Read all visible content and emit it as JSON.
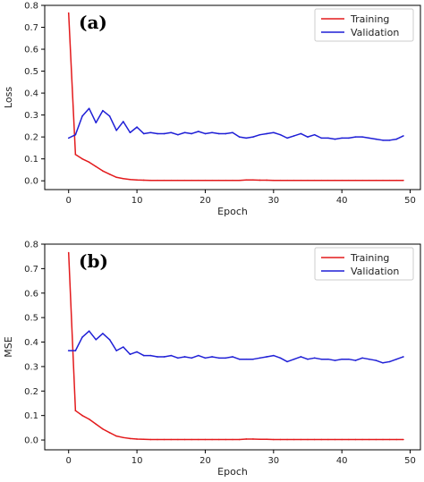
{
  "chart_data": [
    {
      "type": "line",
      "panel_label": "(a)",
      "xlabel": "Epoch",
      "ylabel": "Loss",
      "xlim": [
        -3.5,
        51.5
      ],
      "ylim": [
        -0.04,
        0.8
      ],
      "x_ticks": [
        0,
        10,
        20,
        30,
        40,
        50
      ],
      "y_ticks": [
        0.0,
        0.1,
        0.2,
        0.3,
        0.4,
        0.5,
        0.6,
        0.7,
        0.8
      ],
      "legend_position": "top-right",
      "grid": false,
      "x": [
        0,
        1,
        2,
        3,
        4,
        5,
        6,
        7,
        8,
        9,
        10,
        11,
        12,
        13,
        14,
        15,
        16,
        17,
        18,
        19,
        20,
        21,
        22,
        23,
        24,
        25,
        26,
        27,
        28,
        29,
        30,
        31,
        32,
        33,
        34,
        35,
        36,
        37,
        38,
        39,
        40,
        41,
        42,
        43,
        44,
        45,
        46,
        47,
        48,
        49
      ],
      "series": [
        {
          "name": "Training",
          "color": "#e31a1c",
          "values": [
            0.765,
            0.12,
            0.1,
            0.085,
            0.065,
            0.045,
            0.03,
            0.016,
            0.01,
            0.006,
            0.004,
            0.003,
            0.002,
            0.002,
            0.002,
            0.002,
            0.002,
            0.002,
            0.002,
            0.002,
            0.002,
            0.002,
            0.002,
            0.002,
            0.002,
            0.002,
            0.004,
            0.004,
            0.003,
            0.003,
            0.002,
            0.002,
            0.002,
            0.002,
            0.002,
            0.002,
            0.002,
            0.002,
            0.002,
            0.002,
            0.002,
            0.002,
            0.002,
            0.002,
            0.002,
            0.002,
            0.002,
            0.002,
            0.002,
            0.002
          ]
        },
        {
          "name": "Validation",
          "color": "#1f1fd6",
          "values": [
            0.195,
            0.21,
            0.295,
            0.33,
            0.265,
            0.32,
            0.295,
            0.23,
            0.27,
            0.22,
            0.245,
            0.215,
            0.22,
            0.215,
            0.215,
            0.22,
            0.21,
            0.22,
            0.215,
            0.225,
            0.215,
            0.22,
            0.215,
            0.215,
            0.22,
            0.2,
            0.195,
            0.2,
            0.21,
            0.215,
            0.22,
            0.21,
            0.195,
            0.205,
            0.215,
            0.2,
            0.21,
            0.195,
            0.195,
            0.19,
            0.195,
            0.195,
            0.2,
            0.2,
            0.195,
            0.19,
            0.185,
            0.185,
            0.19,
            0.205
          ]
        }
      ]
    },
    {
      "type": "line",
      "panel_label": "(b)",
      "xlabel": "Epoch",
      "ylabel": "MSE",
      "xlim": [
        -3.5,
        51.5
      ],
      "ylim": [
        -0.04,
        0.8
      ],
      "x_ticks": [
        0,
        10,
        20,
        30,
        40,
        50
      ],
      "y_ticks": [
        0.0,
        0.1,
        0.2,
        0.3,
        0.4,
        0.5,
        0.6,
        0.7,
        0.8
      ],
      "legend_position": "top-right",
      "grid": false,
      "x": [
        0,
        1,
        2,
        3,
        4,
        5,
        6,
        7,
        8,
        9,
        10,
        11,
        12,
        13,
        14,
        15,
        16,
        17,
        18,
        19,
        20,
        21,
        22,
        23,
        24,
        25,
        26,
        27,
        28,
        29,
        30,
        31,
        32,
        33,
        34,
        35,
        36,
        37,
        38,
        39,
        40,
        41,
        42,
        43,
        44,
        45,
        46,
        47,
        48,
        49
      ],
      "series": [
        {
          "name": "Training",
          "color": "#e31a1c",
          "values": [
            0.765,
            0.12,
            0.1,
            0.085,
            0.065,
            0.045,
            0.03,
            0.016,
            0.01,
            0.006,
            0.004,
            0.003,
            0.002,
            0.002,
            0.002,
            0.002,
            0.002,
            0.002,
            0.002,
            0.002,
            0.002,
            0.002,
            0.002,
            0.002,
            0.002,
            0.002,
            0.004,
            0.004,
            0.003,
            0.003,
            0.002,
            0.002,
            0.002,
            0.002,
            0.002,
            0.002,
            0.002,
            0.002,
            0.002,
            0.002,
            0.002,
            0.002,
            0.002,
            0.002,
            0.002,
            0.002,
            0.002,
            0.002,
            0.002,
            0.002
          ]
        },
        {
          "name": "Validation",
          "color": "#1f1fd6",
          "values": [
            0.365,
            0.365,
            0.42,
            0.445,
            0.41,
            0.435,
            0.41,
            0.365,
            0.38,
            0.35,
            0.36,
            0.345,
            0.345,
            0.34,
            0.34,
            0.345,
            0.335,
            0.34,
            0.335,
            0.345,
            0.335,
            0.34,
            0.335,
            0.335,
            0.34,
            0.33,
            0.33,
            0.33,
            0.335,
            0.34,
            0.345,
            0.335,
            0.32,
            0.33,
            0.34,
            0.33,
            0.335,
            0.33,
            0.33,
            0.325,
            0.33,
            0.33,
            0.325,
            0.335,
            0.33,
            0.325,
            0.315,
            0.32,
            0.33,
            0.34
          ]
        }
      ]
    }
  ]
}
